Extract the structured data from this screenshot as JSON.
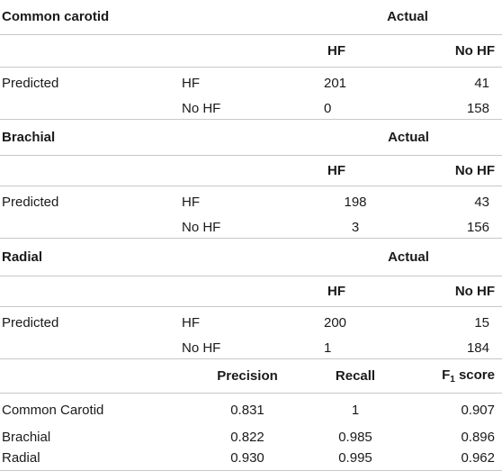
{
  "sections": [
    {
      "title": "Common carotid",
      "actual": "Actual",
      "col_hf": "HF",
      "col_nohf": "No HF",
      "predicted": "Predicted",
      "rows": [
        {
          "label": "HF",
          "hf": "201",
          "nohf": "41"
        },
        {
          "label": "No HF",
          "hf": "0",
          "nohf": "158"
        }
      ]
    },
    {
      "title": "Brachial",
      "actual": "Actual",
      "col_hf": "HF",
      "col_nohf": "No HF",
      "predicted": "Predicted",
      "rows": [
        {
          "label": "HF",
          "hf": "198",
          "nohf": "43"
        },
        {
          "label": "No HF",
          "hf": "3",
          "nohf": "156"
        }
      ]
    },
    {
      "title": "Radial",
      "actual": "Actual",
      "col_hf": "HF",
      "col_nohf": "No HF",
      "predicted": "Predicted",
      "rows": [
        {
          "label": "HF",
          "hf": "200",
          "nohf": "15"
        },
        {
          "label": "No HF",
          "hf": "1",
          "nohf": "184"
        }
      ]
    }
  ],
  "metrics": {
    "headers": {
      "precision": "Precision",
      "recall": "Recall",
      "f1_prefix": "F",
      "f1_sub": "1",
      "f1_suffix": " score"
    },
    "rows": [
      {
        "name": "Common Carotid",
        "precision": "0.831",
        "recall": "1",
        "f1": "0.907"
      },
      {
        "name": "Brachial",
        "precision": "0.822",
        "recall": "0.985",
        "f1": "0.896"
      },
      {
        "name": "Radial",
        "precision": "0.930",
        "recall": "0.995",
        "f1": "0.962"
      }
    ]
  }
}
